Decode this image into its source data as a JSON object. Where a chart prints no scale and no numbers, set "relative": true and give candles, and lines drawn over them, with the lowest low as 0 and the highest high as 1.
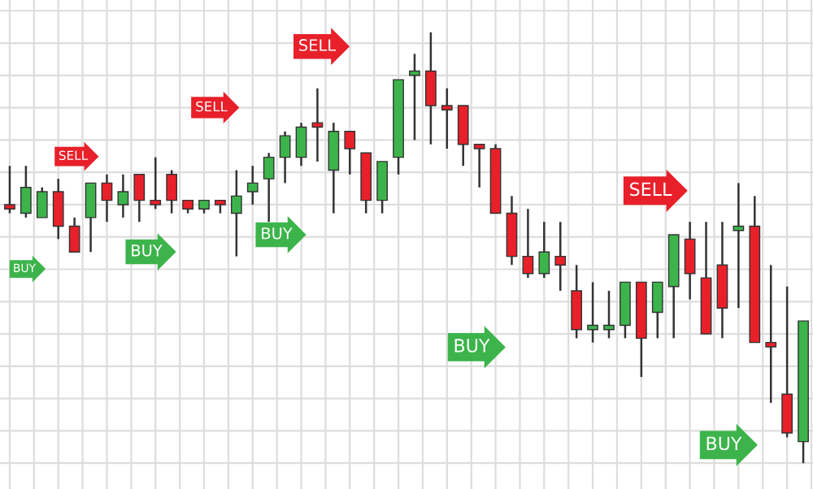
{
  "chart_data": {
    "type": "candlestick",
    "relative": true,
    "grid": true,
    "categories": [
      null,
      null,
      null,
      null,
      null,
      null,
      null,
      null,
      null,
      null,
      null,
      null,
      null,
      null,
      null,
      null,
      null,
      null,
      null,
      null,
      null,
      null,
      null,
      null,
      null,
      null,
      null,
      null,
      null,
      null,
      null,
      null,
      null,
      null,
      null,
      null,
      null,
      null,
      null,
      null,
      null,
      null,
      null,
      null,
      null,
      null,
      null,
      null,
      null,
      null
    ],
    "ohlc": [
      [
        0.6,
        0.69,
        0.58,
        0.59
      ],
      [
        0.58,
        0.69,
        0.57,
        0.64
      ],
      [
        0.57,
        0.64,
        0.57,
        0.63
      ],
      [
        0.63,
        0.66,
        0.52,
        0.55
      ],
      [
        0.55,
        0.57,
        0.49,
        0.49
      ],
      [
        0.57,
        0.65,
        0.49,
        0.65
      ],
      [
        0.65,
        0.67,
        0.56,
        0.61
      ],
      [
        0.6,
        0.67,
        0.57,
        0.63
      ],
      [
        0.67,
        0.67,
        0.56,
        0.61
      ],
      [
        0.61,
        0.71,
        0.59,
        0.6
      ],
      [
        0.67,
        0.68,
        0.58,
        0.61
      ],
      [
        0.61,
        0.61,
        0.58,
        0.59
      ],
      [
        0.59,
        0.61,
        0.58,
        0.61
      ],
      [
        0.61,
        0.61,
        0.58,
        0.6
      ],
      [
        0.58,
        0.68,
        0.48,
        0.62
      ],
      [
        0.63,
        0.69,
        0.6,
        0.65
      ],
      [
        0.66,
        0.72,
        0.56,
        0.71
      ],
      [
        0.71,
        0.77,
        0.65,
        0.76
      ],
      [
        0.71,
        0.79,
        0.69,
        0.78
      ],
      [
        0.79,
        0.87,
        0.7,
        0.78
      ],
      [
        0.68,
        0.79,
        0.58,
        0.77
      ],
      [
        0.77,
        0.77,
        0.67,
        0.73
      ],
      [
        0.72,
        0.72,
        0.58,
        0.61
      ],
      [
        0.61,
        0.7,
        0.58,
        0.7
      ],
      [
        0.71,
        0.89,
        0.67,
        0.89
      ],
      [
        0.9,
        0.95,
        0.75,
        0.91
      ],
      [
        0.91,
        1,
        0.74,
        0.83
      ],
      [
        0.83,
        0.87,
        0.73,
        0.82
      ],
      [
        0.83,
        0.83,
        0.69,
        0.74
      ],
      [
        0.74,
        0.74,
        0.64,
        0.73
      ],
      [
        0.73,
        0.74,
        0.58,
        0.58
      ],
      [
        0.58,
        0.62,
        0.46,
        0.48
      ],
      [
        0.48,
        0.59,
        0.43,
        0.44
      ],
      [
        0.44,
        0.56,
        0.43,
        0.49
      ],
      [
        0.48,
        0.56,
        0.4,
        0.46
      ],
      [
        0.4,
        0.46,
        0.29,
        0.31
      ],
      [
        0.31,
        0.42,
        0.28,
        0.32
      ],
      [
        0.31,
        0.4,
        0.29,
        0.32
      ],
      [
        0.32,
        0.42,
        0.29,
        0.42
      ],
      [
        0.42,
        0.42,
        0.2,
        0.29
      ],
      [
        0.35,
        0.42,
        0.29,
        0.42
      ],
      [
        0.41,
        0.53,
        0.29,
        0.53
      ],
      [
        0.52,
        0.56,
        0.38,
        0.44
      ],
      [
        0.43,
        0.56,
        0.3,
        0.3
      ],
      [
        0.46,
        0.56,
        0.29,
        0.36
      ],
      [
        0.54,
        0.65,
        0.36,
        0.55
      ],
      [
        0.55,
        0.62,
        0.28,
        0.28
      ],
      [
        0.28,
        0.46,
        0.14,
        0.27
      ],
      [
        0.16,
        0.41,
        0.06,
        0.07
      ],
      [
        0.05,
        0.33,
        0,
        0.33
      ]
    ],
    "annotations": [
      "SELL",
      "SELL",
      "SELL",
      "SELL",
      "BUY",
      "BUY",
      "BUY",
      "BUY",
      "BUY"
    ]
  }
}
